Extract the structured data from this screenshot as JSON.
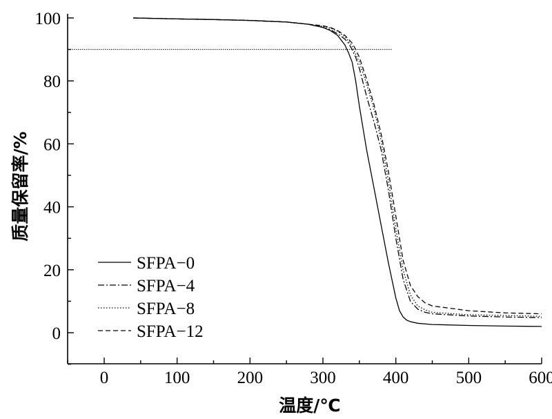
{
  "chart_data": {
    "type": "line",
    "xlabel": "温度/℃",
    "ylabel": "质量保留率/%",
    "xlim": [
      -50,
      600
    ],
    "ylim": [
      -10,
      100
    ],
    "xticks": [
      0,
      100,
      200,
      300,
      400,
      500,
      600
    ],
    "yticks": [
      0,
      20,
      40,
      60,
      80,
      100
    ],
    "grid": false,
    "legend_position": "bottom-left",
    "reference_line": {
      "y": 90,
      "x_start": -50,
      "x_end": 395
    },
    "series": [
      {
        "name": "SFPA−0",
        "style": "solid",
        "x": [
          40,
          100,
          150,
          200,
          250,
          280,
          300,
          310,
          320,
          330,
          335,
          340,
          345,
          350,
          360,
          370,
          380,
          390,
          400,
          405,
          410,
          415,
          420,
          430,
          450,
          500,
          550,
          600
        ],
        "y": [
          100,
          99.7,
          99.5,
          99.2,
          98.7,
          98,
          97,
          96,
          94.5,
          91.5,
          89,
          86,
          80,
          72,
          58,
          46,
          34,
          22,
          11,
          7,
          5,
          4,
          3.5,
          3,
          2.6,
          2.3,
          2.1,
          2
        ]
      },
      {
        "name": "SFPA−4",
        "style": "dashdot",
        "x": [
          40,
          100,
          150,
          200,
          250,
          280,
          300,
          310,
          320,
          330,
          335,
          340,
          345,
          350,
          360,
          370,
          380,
          390,
          400,
          410,
          420,
          430,
          440,
          450,
          500,
          550,
          600
        ],
        "y": [
          100,
          99.7,
          99.5,
          99.2,
          98.7,
          98,
          97,
          96.3,
          95,
          93.3,
          92,
          90,
          87.5,
          84,
          75,
          67,
          58,
          45,
          30,
          17,
          10,
          7.5,
          6.5,
          6,
          5.3,
          5,
          4.8
        ]
      },
      {
        "name": "SFPA−8",
        "style": "dotted",
        "x": [
          40,
          100,
          150,
          200,
          250,
          280,
          300,
          310,
          320,
          330,
          335,
          340,
          345,
          350,
          360,
          370,
          380,
          390,
          400,
          410,
          420,
          430,
          440,
          450,
          500,
          550,
          600
        ],
        "y": [
          100,
          99.7,
          99.5,
          99.2,
          98.7,
          98,
          97.3,
          96.8,
          95.8,
          94,
          92.7,
          91,
          88.5,
          86,
          79,
          71,
          61,
          48,
          33,
          20,
          12,
          8.5,
          7.3,
          6.5,
          5.7,
          5.5,
          5.2
        ]
      },
      {
        "name": "SFPA−12",
        "style": "dashed",
        "x": [
          40,
          100,
          150,
          200,
          250,
          280,
          300,
          310,
          320,
          330,
          335,
          340,
          345,
          350,
          360,
          370,
          380,
          390,
          400,
          410,
          420,
          430,
          440,
          450,
          500,
          550,
          600
        ],
        "y": [
          100,
          99.7,
          99.5,
          99.2,
          98.7,
          98,
          97.5,
          97,
          96,
          94.5,
          93.3,
          92,
          90,
          87.5,
          80.5,
          72.5,
          63,
          51,
          37,
          23,
          15,
          11.5,
          9.5,
          8.5,
          7,
          6.3,
          6
        ]
      }
    ]
  }
}
